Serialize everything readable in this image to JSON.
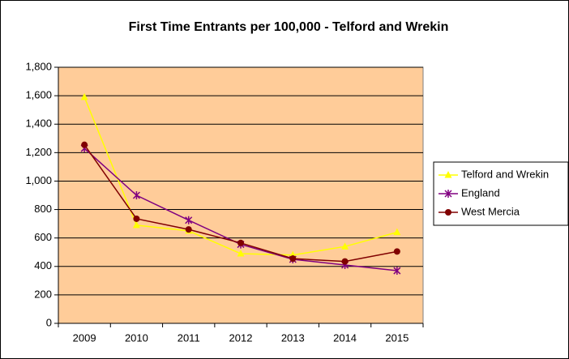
{
  "chart_data": {
    "type": "line",
    "title": "First Time Entrants per 100,000 - Telford and Wrekin",
    "categories": [
      "2009",
      "2010",
      "2011",
      "2012",
      "2013",
      "2014",
      "2015"
    ],
    "series": [
      {
        "name": "Telford and Wrekin",
        "color": "#ffff00",
        "marker": "triangle",
        "values": [
          1590,
          690,
          650,
          490,
          480,
          540,
          640
        ]
      },
      {
        "name": "England",
        "color": "#800080",
        "marker": "star",
        "values": [
          1230,
          900,
          725,
          555,
          450,
          410,
          370
        ]
      },
      {
        "name": "West Mercia",
        "color": "#800000",
        "marker": "circle",
        "values": [
          1255,
          735,
          660,
          565,
          455,
          435,
          505
        ]
      }
    ],
    "ylim": [
      0,
      1800
    ],
    "yticks": [
      0,
      200,
      400,
      600,
      800,
      {
        "value": 1000,
        "label": "1,000"
      },
      {
        "value": 1200,
        "label": "1,200"
      },
      {
        "value": 1400,
        "label": "1,400"
      },
      {
        "value": 1600,
        "label": "1,600"
      },
      {
        "value": 1800,
        "label": "1,800"
      }
    ],
    "grid": true,
    "plot_background": "#ffcc99",
    "legend": "right"
  }
}
